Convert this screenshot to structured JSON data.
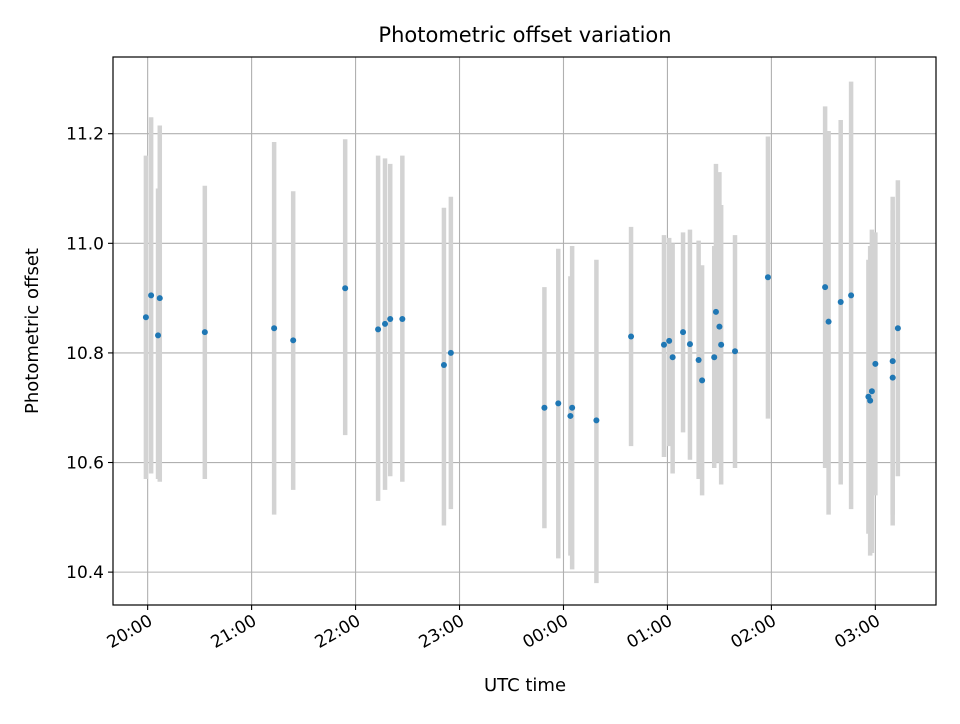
{
  "chart_data": {
    "type": "scatter",
    "title": "Photometric offset variation",
    "xlabel": "UTC time",
    "ylabel": "Photometric offset",
    "x_tick_labels": [
      "20:00",
      "21:00",
      "22:00",
      "23:00",
      "00:00",
      "01:00",
      "02:00",
      "03:00"
    ],
    "y_tick_labels": [
      "10.4",
      "10.6",
      "10.8",
      "11.0",
      "11.2"
    ],
    "xlim": [
      "19:40",
      "03:35"
    ],
    "ylim": [
      10.34,
      11.34
    ],
    "y_ticks": [
      10.4,
      10.6,
      10.8,
      11.0,
      11.2
    ],
    "grid": true,
    "colors": {
      "points": "#1f77b4",
      "error_bars": "#d3d3d3",
      "grid": "#b0b0b0"
    },
    "series": [
      {
        "points": [
          {
            "time": "19:59",
            "y": 10.865,
            "low": 10.57,
            "high": 11.16
          },
          {
            "time": "20:02",
            "y": 10.905,
            "low": 10.58,
            "high": 11.23
          },
          {
            "time": "20:06",
            "y": 10.832,
            "low": 10.57,
            "high": 11.1
          },
          {
            "time": "20:07",
            "y": 10.9,
            "low": 10.565,
            "high": 11.215
          },
          {
            "time": "20:33",
            "y": 10.838,
            "low": 10.57,
            "high": 11.105
          },
          {
            "time": "21:13",
            "y": 10.845,
            "low": 10.505,
            "high": 11.185
          },
          {
            "time": "21:24",
            "y": 10.823,
            "low": 10.55,
            "high": 11.095
          },
          {
            "time": "21:54",
            "y": 10.918,
            "low": 10.65,
            "high": 11.19
          },
          {
            "time": "22:13",
            "y": 10.843,
            "low": 10.53,
            "high": 11.16
          },
          {
            "time": "22:17",
            "y": 10.853,
            "low": 10.55,
            "high": 11.155
          },
          {
            "time": "22:20",
            "y": 10.862,
            "low": 10.575,
            "high": 11.145
          },
          {
            "time": "22:27",
            "y": 10.862,
            "low": 10.565,
            "high": 11.16
          },
          {
            "time": "22:51",
            "y": 10.778,
            "low": 10.485,
            "high": 11.065
          },
          {
            "time": "22:55",
            "y": 10.8,
            "low": 10.515,
            "high": 11.085
          },
          {
            "time": "23:49",
            "y": 10.7,
            "low": 10.48,
            "high": 10.92
          },
          {
            "time": "23:57",
            "y": 10.708,
            "low": 10.425,
            "high": 10.99
          },
          {
            "time": "00:04",
            "y": 10.685,
            "low": 10.43,
            "high": 10.94
          },
          {
            "time": "00:05",
            "y": 10.7,
            "low": 10.405,
            "high": 10.995
          },
          {
            "time": "00:19",
            "y": 10.677,
            "low": 10.38,
            "high": 10.97
          },
          {
            "time": "00:39",
            "y": 10.83,
            "low": 10.63,
            "high": 11.03
          },
          {
            "time": "00:58",
            "y": 10.815,
            "low": 10.61,
            "high": 11.015
          },
          {
            "time": "01:01",
            "y": 10.822,
            "low": 10.63,
            "high": 11.01
          },
          {
            "time": "01:03",
            "y": 10.792,
            "low": 10.58,
            "high": 11.0
          },
          {
            "time": "01:09",
            "y": 10.838,
            "low": 10.655,
            "high": 11.02
          },
          {
            "time": "01:13",
            "y": 10.816,
            "low": 10.605,
            "high": 11.025
          },
          {
            "time": "01:18",
            "y": 10.787,
            "low": 10.57,
            "high": 11.005
          },
          {
            "time": "01:20",
            "y": 10.75,
            "low": 10.54,
            "high": 10.96
          },
          {
            "time": "01:27",
            "y": 10.792,
            "low": 10.59,
            "high": 10.995
          },
          {
            "time": "01:28",
            "y": 10.875,
            "low": 10.6,
            "high": 11.145
          },
          {
            "time": "01:30",
            "y": 10.848,
            "low": 10.6,
            "high": 11.13
          },
          {
            "time": "01:31",
            "y": 10.815,
            "low": 10.56,
            "high": 11.07
          },
          {
            "time": "01:39",
            "y": 10.803,
            "low": 10.59,
            "high": 11.015
          },
          {
            "time": "01:58",
            "y": 10.938,
            "low": 10.68,
            "high": 11.195
          },
          {
            "time": "02:31",
            "y": 10.92,
            "low": 10.59,
            "high": 11.25
          },
          {
            "time": "02:33",
            "y": 10.857,
            "low": 10.505,
            "high": 11.205
          },
          {
            "time": "02:40",
            "y": 10.893,
            "low": 10.56,
            "high": 11.225
          },
          {
            "time": "02:46",
            "y": 10.905,
            "low": 10.515,
            "high": 11.295
          },
          {
            "time": "02:56",
            "y": 10.72,
            "low": 10.47,
            "high": 10.97
          },
          {
            "time": "02:57",
            "y": 10.713,
            "low": 10.43,
            "high": 10.995
          },
          {
            "time": "02:58",
            "y": 10.73,
            "low": 10.435,
            "high": 11.025
          },
          {
            "time": "03:00",
            "y": 10.78,
            "low": 10.54,
            "high": 11.02
          },
          {
            "time": "03:10",
            "y": 10.755,
            "low": 10.505,
            "high": 11.06
          },
          {
            "time": "03:10",
            "y": 10.785,
            "low": 10.485,
            "high": 11.085
          },
          {
            "time": "03:13",
            "y": 10.845,
            "low": 10.575,
            "high": 11.115
          }
        ]
      }
    ]
  }
}
